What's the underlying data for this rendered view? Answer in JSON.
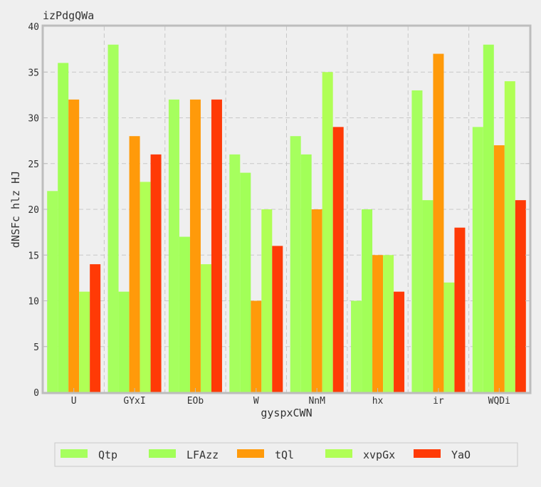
{
  "chart_data": {
    "type": "bar",
    "title": "izPdgQWa",
    "xlabel": "gyspxCWN",
    "ylabel": "dNSFc hlz HJ",
    "ylim": [
      0,
      40
    ],
    "yticks": [
      "0",
      "5",
      "10",
      "15",
      "20",
      "25",
      "30",
      "35",
      "40"
    ],
    "grid": true,
    "legend_position": "bottom",
    "categories": [
      "U",
      "GYxI",
      "EOb",
      "W",
      "NnM",
      "hx",
      "ir",
      "WQDi"
    ],
    "series": [
      {
        "name": "Qtp",
        "color": "#a6ff5e",
        "values": [
          22,
          38,
          32,
          26,
          28,
          10,
          33,
          29
        ]
      },
      {
        "name": "LFAzz",
        "color": "#a2ff58",
        "values": [
          36,
          11,
          17,
          24,
          26,
          20,
          21,
          38
        ]
      },
      {
        "name": "tQl",
        "color": "#ff9a0a",
        "values": [
          32,
          28,
          32,
          10,
          20,
          15,
          37,
          27
        ]
      },
      {
        "name": "xvpGx",
        "color": "#b0ff55",
        "values": [
          11,
          23,
          14,
          20,
          35,
          15,
          12,
          34
        ]
      },
      {
        "name": "YaO",
        "color": "#ff3a06",
        "values": [
          14,
          26,
          32,
          16,
          29,
          11,
          18,
          21
        ]
      }
    ]
  }
}
